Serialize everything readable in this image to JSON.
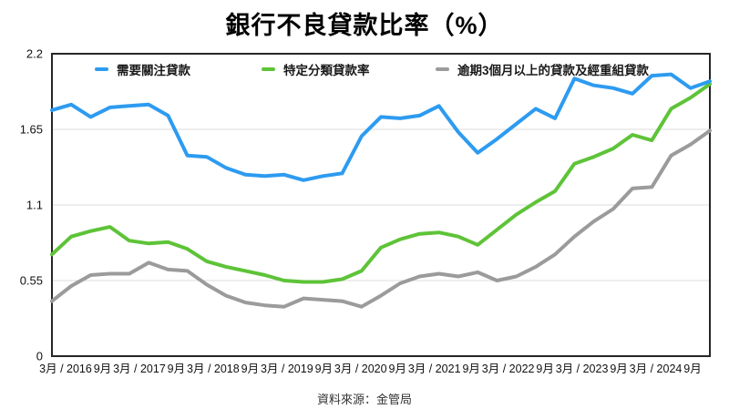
{
  "title": "銀行不良貸款比率（%）",
  "source": "資料來源：金管局",
  "legend": {
    "items": [
      {
        "label": "需要關注貸款",
        "color": "#2D9BF0"
      },
      {
        "label": "特定分類貸款率",
        "color": "#5EC338"
      },
      {
        "label": "逾期3個月以上的貸款及經重組貸款",
        "color": "#9B9B9B"
      }
    ]
  },
  "y_axis": {
    "ticks": [
      {
        "label": "2.2",
        "value": 2.2
      },
      {
        "label": "1.65",
        "value": 1.65
      },
      {
        "label": "1.1",
        "value": 1.1
      },
      {
        "label": "0.55",
        "value": 0.55
      },
      {
        "label": "0",
        "value": 0
      }
    ]
  },
  "x_axis": {
    "labels": [
      "3月 / 2016",
      "9月",
      "3月 / 2017",
      "9月",
      "3月 / 2018",
      "9月",
      "3月 / 2019",
      "9月",
      "3月 / 2020",
      "9月",
      "3月 / 2021",
      "9月",
      "3月 / 2022",
      "9月",
      "3月 / 2023",
      "9月",
      "3月 / 2024",
      "9月"
    ]
  },
  "colors": {
    "grid": "#DCDCDC",
    "plot_border": "#262626",
    "tick_text": "#111111"
  },
  "chart_data": {
    "type": "line",
    "title": "銀行不良貸款比率（%）",
    "xlabel": "",
    "ylabel": "",
    "ylim": [
      0,
      2.2
    ],
    "grid": "horizontal-only",
    "gridline_values": [
      0.55,
      1.1,
      1.65
    ],
    "legend_position": "top-inside",
    "x": [
      "2016-03",
      "2016-06",
      "2016-09",
      "2016-12",
      "2017-03",
      "2017-06",
      "2017-09",
      "2017-12",
      "2018-03",
      "2018-06",
      "2018-09",
      "2018-12",
      "2019-03",
      "2019-06",
      "2019-09",
      "2019-12",
      "2020-03",
      "2020-06",
      "2020-09",
      "2020-12",
      "2021-03",
      "2021-06",
      "2021-09",
      "2021-12",
      "2022-03",
      "2022-06",
      "2022-09",
      "2022-12",
      "2023-03",
      "2023-06",
      "2023-09",
      "2023-12",
      "2024-03",
      "2024-06",
      "2024-09"
    ],
    "series": [
      {
        "name": "需要關注貸款",
        "color": "#2D9BF0",
        "values": [
          1.79,
          1.83,
          1.74,
          1.81,
          1.82,
          1.83,
          1.75,
          1.46,
          1.45,
          1.37,
          1.32,
          1.31,
          1.32,
          1.28,
          1.31,
          1.33,
          1.6,
          1.74,
          1.73,
          1.75,
          1.82,
          1.63,
          1.48,
          1.58,
          1.69,
          1.8,
          1.73,
          2.02,
          1.97,
          1.95,
          1.91,
          2.04,
          2.05,
          1.95,
          2.0
        ]
      },
      {
        "name": "特定分類貸款率",
        "color": "#5EC338",
        "values": [
          0.74,
          0.87,
          0.91,
          0.94,
          0.84,
          0.82,
          0.83,
          0.78,
          0.69,
          0.65,
          0.62,
          0.59,
          0.55,
          0.54,
          0.54,
          0.56,
          0.62,
          0.79,
          0.85,
          0.89,
          0.9,
          0.87,
          0.81,
          0.92,
          1.03,
          1.12,
          1.2,
          1.4,
          1.45,
          1.51,
          1.61,
          1.57,
          1.8,
          1.88,
          1.98
        ]
      },
      {
        "name": "逾期3個月以上的貸款及經重組貸款",
        "color": "#9B9B9B",
        "values": [
          0.4,
          0.51,
          0.59,
          0.6,
          0.6,
          0.68,
          0.63,
          0.62,
          0.52,
          0.44,
          0.39,
          0.37,
          0.36,
          0.42,
          0.41,
          0.4,
          0.36,
          0.44,
          0.53,
          0.58,
          0.6,
          0.58,
          0.61,
          0.55,
          0.58,
          0.65,
          0.74,
          0.87,
          0.98,
          1.07,
          1.22,
          1.23,
          1.46,
          1.54,
          1.64
        ]
      }
    ]
  }
}
